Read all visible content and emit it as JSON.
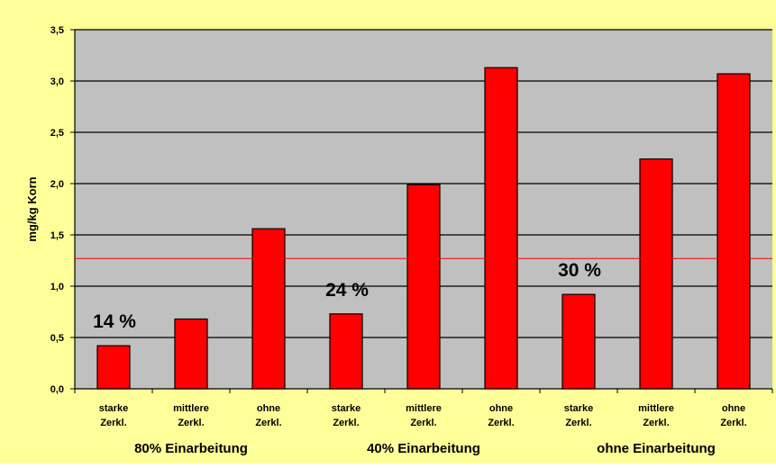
{
  "chart_data": {
    "type": "bar",
    "ylabel": "mg/kg Korn",
    "ylim": [
      0,
      3.5
    ],
    "yticks": [
      "0,0",
      "0,5",
      "1,0",
      "1,5",
      "2,0",
      "2,5",
      "3,0",
      "3,5"
    ],
    "categories": [
      [
        "starke",
        "Zerkl."
      ],
      [
        "mittlere",
        "Zerkl."
      ],
      [
        "ohne",
        "Zerkl."
      ],
      [
        "starke",
        "Zerkl."
      ],
      [
        "mittlere",
        "Zerkl."
      ],
      [
        "ohne",
        "Zerkl."
      ],
      [
        "starke",
        "Zerkl."
      ],
      [
        "mittlere",
        "Zerkl."
      ],
      [
        "ohne",
        "Zerkl."
      ]
    ],
    "values": [
      0.42,
      0.68,
      1.56,
      0.73,
      1.99,
      3.13,
      0.92,
      2.24,
      3.07
    ],
    "groups": [
      "80% Einarbeitung",
      "40% Einarbeitung",
      "ohne Einarbeitung"
    ],
    "annotations": [
      {
        "text": "14 %",
        "category_index": 0
      },
      {
        "text": "24 %",
        "category_index": 3
      },
      {
        "text": "30 %",
        "category_index": 6
      }
    ],
    "reference_line": 1.27,
    "grid": true
  },
  "colors": {
    "background": "#ffff99",
    "plot_area": "#c0c0c0",
    "bar": "#ff0000",
    "bar_stroke": "#000000",
    "reference_line": "#ff0000",
    "gridline": "#000000"
  }
}
